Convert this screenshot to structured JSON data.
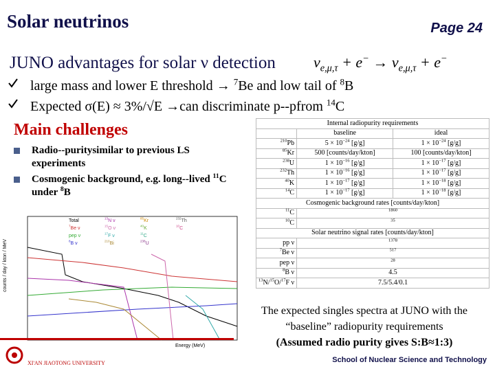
{
  "header": {
    "title": "Solar neutrinos",
    "page": "Page 24"
  },
  "advantages": {
    "heading": "JUNO advantages for solar ν detection",
    "reaction": [
      "ν",
      "e,μ,τ",
      "+ e",
      "−",
      "→ ν",
      "e,μ,τ",
      "+ e",
      "−"
    ],
    "items": [
      [
        "large mass and lower E threshold ",
        "→ ",
        "7",
        "Be and low tail of ",
        "8",
        "B"
      ],
      [
        "Expected σ(E) ≈ 3%/√E ",
        "→",
        "can discriminate p--pfrom ",
        "14",
        "C"
      ]
    ]
  },
  "challenges": {
    "heading": "Main challenges",
    "items": [
      [
        "Radio--puritysimilar  to previous LS experiments"
      ],
      [
        "Cosmogenic background,  e.g. long--lived ",
        "11",
        "C under ",
        "8",
        "B"
      ]
    ]
  },
  "table": {
    "title": "Internal radiopurity requirements",
    "columns": [
      "baseline",
      "ideal"
    ],
    "rows": [
      {
        "label": [
          "210",
          "Pb"
        ],
        "cells": [
          [
            "5 × 10",
            "−24",
            " [g/g]"
          ],
          [
            "1 × 10",
            "−24",
            " [g/g]"
          ]
        ]
      },
      {
        "label": [
          "85",
          "Kr"
        ],
        "cells": [
          [
            "500 [counts/day/kton]"
          ],
          [
            "100 [counts/day/kton]"
          ]
        ]
      },
      {
        "label": [
          "238",
          "U"
        ],
        "cells": [
          [
            "1 × 10",
            "−16",
            " [g/g]"
          ],
          [
            "1 × 10",
            "−17",
            " [g/g]"
          ]
        ]
      },
      {
        "label": [
          "232",
          "Th"
        ],
        "cells": [
          [
            "1 × 10",
            "−16",
            " [g/g]"
          ],
          [
            "1 × 10",
            "−17",
            " [g/g]"
          ]
        ]
      },
      {
        "label": [
          "40",
          "K"
        ],
        "cells": [
          [
            "1 × 10",
            "−17",
            " [g/g]"
          ],
          [
            "1 × 10",
            "−18",
            " [g/g]"
          ]
        ]
      },
      {
        "label": [
          "14",
          "C"
        ],
        "cells": [
          [
            "1 × 10",
            "−17",
            " [g/g]"
          ],
          [
            "1 × 10",
            "−18",
            " [g/g]"
          ]
        ]
      },
      {
        "section": "Cosmogenic background rates [counts/day/kton]"
      },
      {
        "label": [
          "11",
          "C"
        ],
        "cells": [
          [
            "1860"
          ]
        ]
      },
      {
        "label": [
          "10",
          "C"
        ],
        "cells": [
          [
            "35"
          ]
        ]
      },
      {
        "section": "Solar neutrino signal rates [counts/day/kton]"
      },
      {
        "label": [
          "pp ν"
        ],
        "cells": [
          [
            "1378"
          ]
        ]
      },
      {
        "label": [
          "7",
          "Be ν"
        ],
        "cells": [
          [
            "517"
          ]
        ]
      },
      {
        "label": [
          "pep ν"
        ],
        "cells": [
          [
            "28"
          ]
        ]
      },
      {
        "label": [
          "8",
          "B ν"
        ],
        "cells": [
          [
            "4.5"
          ]
        ]
      },
      {
        "label": [
          "13",
          "N/",
          "15",
          "O/",
          "17",
          "F ν"
        ],
        "cells": [
          [
            "7.5/5.4/0.1"
          ]
        ]
      }
    ]
  },
  "figure": {
    "y_label": "counts / day / kton / MeV",
    "x_label": "Energy (MeV)",
    "legend": [
      [
        "Total"
      ],
      [
        "7",
        "Be ν"
      ],
      [
        "pep ν"
      ],
      [
        "8",
        "B ν"
      ],
      [
        "13",
        "N ν"
      ],
      [
        "15",
        "O ν"
      ],
      [
        "17",
        "F ν"
      ],
      [
        "210",
        "Bi"
      ],
      [
        "85",
        "Kr"
      ],
      [
        "40",
        "K"
      ],
      [
        "11",
        "C"
      ],
      [
        "238",
        "U"
      ],
      [
        "232",
        "Th"
      ],
      [
        "10",
        "C"
      ]
    ]
  },
  "caption": [
    "The expected singles spectra at JUNO with the “baseline” radiopurity requirements",
    "(Assumed radio purity gives S:B≈1:3)"
  ],
  "footer": {
    "school": "School of Nuclear Science and Technology",
    "university": "XI'AN JIAOTONG UNIVERSITY"
  }
}
